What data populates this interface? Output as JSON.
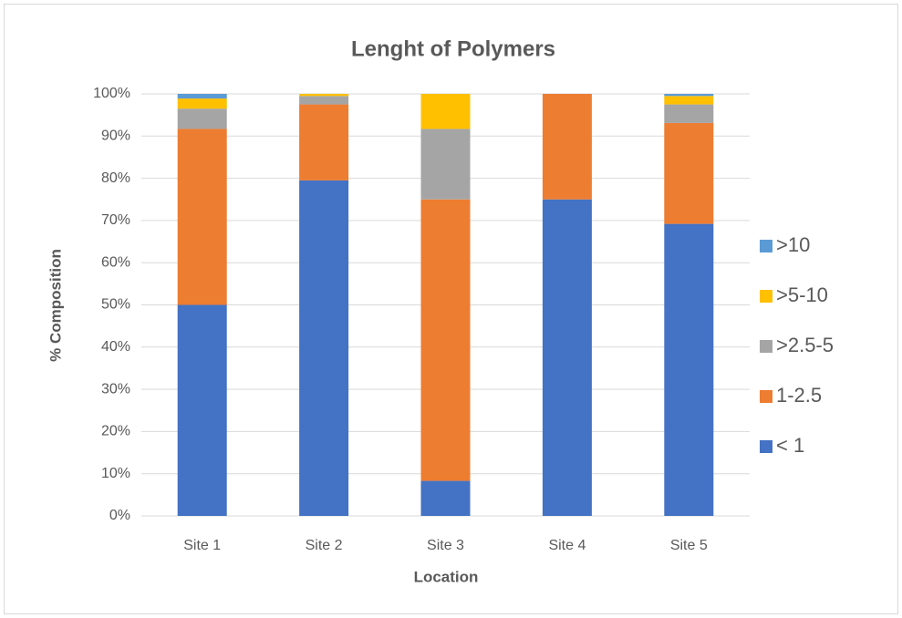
{
  "chart_data": {
    "type": "stacked_bar",
    "title": "Lenght of Polymers",
    "x_label": "Location",
    "y_label": "% Composition",
    "categories": [
      "Site 1",
      "Site 2",
      "Site 3",
      "Site 4",
      "Site 5"
    ],
    "series": [
      {
        "name": "< 1",
        "color": "#4472c4",
        "values": [
          50,
          79.5,
          8.3,
          75,
          69.2
        ]
      },
      {
        "name": "1-2.5",
        "color": "#ed7d31",
        "values": [
          41.7,
          18,
          66.7,
          25,
          23.9
        ]
      },
      {
        "name": ">2.5-5",
        "color": "#a5a5a5",
        "values": [
          4.8,
          2,
          16.7,
          0,
          4.4
        ]
      },
      {
        "name": ">5-10",
        "color": "#ffc000",
        "values": [
          2.4,
          0.5,
          8.3,
          0,
          2
        ]
      },
      {
        "name": ">10",
        "color": "#5b9bd5",
        "values": [
          1.1,
          0,
          0,
          0,
          0.5
        ]
      }
    ],
    "ylim": [
      0,
      100
    ],
    "yticks": [
      {
        "value": 0,
        "label": "0%"
      },
      {
        "value": 10,
        "label": "10%"
      },
      {
        "value": 20,
        "label": "20%"
      },
      {
        "value": 30,
        "label": "30%"
      },
      {
        "value": 40,
        "label": "40%"
      },
      {
        "value": 50,
        "label": "50%"
      },
      {
        "value": 60,
        "label": "60%"
      },
      {
        "value": 70,
        "label": "70%"
      },
      {
        "value": 80,
        "label": "80%"
      },
      {
        "value": 90,
        "label": "90%"
      },
      {
        "value": 100,
        "label": "100%"
      }
    ],
    "grid": true,
    "legend": "right"
  }
}
